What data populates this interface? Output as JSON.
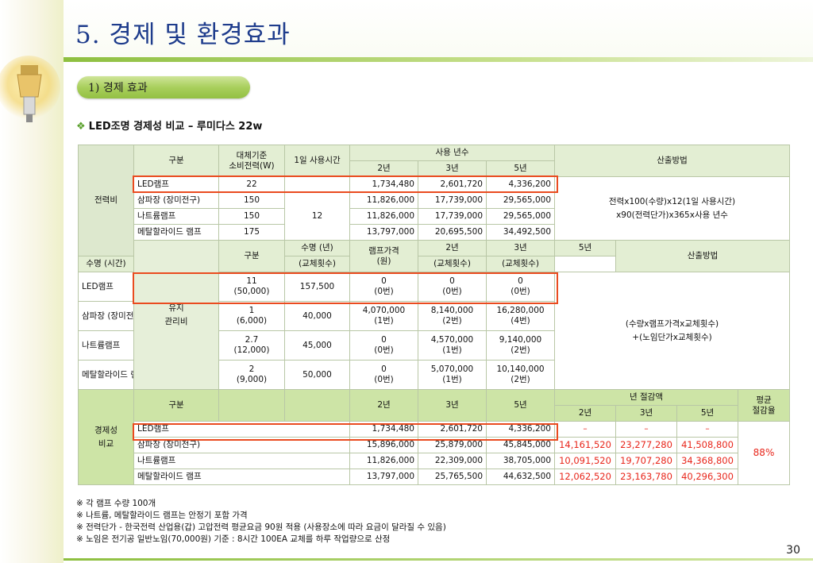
{
  "title": "5. 경제 및 환경효과",
  "section_label": "1) 경제 효과",
  "bullet": "LED조명 경제성 비교 – 루미다스 22w",
  "power": {
    "section": "전력비",
    "h_gubun": "구분",
    "h_watt": "대체기준\n소비전력(W)",
    "h_hours": "1일 사용시간",
    "h_years": "사용 년수",
    "h_method": "산출방법",
    "years": [
      "2년",
      "3년",
      "5년"
    ],
    "hours_value": "12",
    "method": "전력x100(수량)x12(1일 사용시간)\nx90(전력단가)x365x사용 년수",
    "rows": [
      {
        "name": "LED램프",
        "watt": "22",
        "y2": "1,734,480",
        "y3": "2,601,720",
        "y5": "4,336,200"
      },
      {
        "name": "삼파장 (장미전구)",
        "watt": "150",
        "y2": "11,826,000",
        "y3": "17,739,000",
        "y5": "29,565,000"
      },
      {
        "name": "나트륨램프",
        "watt": "150",
        "y2": "11,826,000",
        "y3": "17,739,000",
        "y5": "29,565,000"
      },
      {
        "name": "메탈할라이드 램프",
        "watt": "175",
        "y2": "13,797,000",
        "y3": "20,695,500",
        "y5": "34,492,500"
      }
    ]
  },
  "maint": {
    "section": "유지\n관리비",
    "h_gubun": "구분",
    "h_life_years": "수명 (년)",
    "h_life_hours": "수명 (시간)",
    "h_price": "램프가격\n(원)",
    "h_years": [
      "2년",
      "3년",
      "5년"
    ],
    "h_replace": "(교체횟수)",
    "h_method": "산출방법",
    "method": "(수량x램프가격x교체횟수)\n+(노임단가x교체횟수)",
    "rows": [
      {
        "name": "LED램프",
        "life": "11\n(50,000)",
        "price": "157,500",
        "y2": "0\n(0번)",
        "y3": "0\n(0번)",
        "y5": "0\n(0번)"
      },
      {
        "name": "삼파장 (장미전구)",
        "life": "1\n(6,000)",
        "price": "40,000",
        "y2": "4,070,000\n(1번)",
        "y3": "8,140,000\n(2번)",
        "y5": "16,280,000\n(4번)"
      },
      {
        "name": "나트륨램프",
        "life": "2.7\n(12,000)",
        "price": "45,000",
        "y2": "0\n(0번)",
        "y3": "4,570,000\n(1번)",
        "y5": "9,140,000\n(2번)"
      },
      {
        "name": "메탈할라이드 램프",
        "life": "2\n(9,000)",
        "price": "50,000",
        "y2": "0\n(0번)",
        "y3": "5,070,000\n(1번)",
        "y5": "10,140,000\n(2번)"
      }
    ]
  },
  "econ": {
    "section": "경제성\n비교",
    "h_gubun": "구분",
    "years": [
      "2년",
      "3년",
      "5년"
    ],
    "h_savings": "년 절감액",
    "h_avg": "평균\n절감율",
    "avg_value": "88%",
    "rows": [
      {
        "name": "LED램프",
        "y2": "1,734,480",
        "y3": "2,601,720",
        "y5": "4,336,200",
        "s2": "–",
        "s3": "–",
        "s5": "–"
      },
      {
        "name": "삼파장 (장미전구)",
        "y2": "15,896,000",
        "y3": "25,879,000",
        "y5": "45,845,000",
        "s2": "14,161,520",
        "s3": "23,277,280",
        "s5": "41,508,800"
      },
      {
        "name": "나트륨램프",
        "y2": "11,826,000",
        "y3": "22,309,000",
        "y5": "38,705,000",
        "s2": "10,091,520",
        "s3": "19,707,280",
        "s5": "34,368,800"
      },
      {
        "name": "메탈할라이드 램프",
        "y2": "13,797,000",
        "y3": "25,765,500",
        "y5": "44,632,500",
        "s2": "12,062,520",
        "s3": "23,163,780",
        "s5": "40,296,300"
      }
    ]
  },
  "notes": [
    "※ 각 램프 수량 100개",
    "※ 나트륨, 메탈할라이드 램프는 안정기 포함 가격",
    "※ 전력단가 - 한국전력 산업용(갑) 고압전력 평균요금 90원 적용 (사용장소에 따라 요금이 달라질 수 있음)",
    "※ 노임은 전기공 일반노임(70,000원) 기준 : 8시간 100EA 교체를 하루 작업량으로 산정"
  ],
  "page_number": "30",
  "colors": {
    "accent_green": "#93c043",
    "title_blue": "#1e3c8c",
    "highlight_red": "#ea4b1f",
    "savings_red": "#e8261b"
  }
}
